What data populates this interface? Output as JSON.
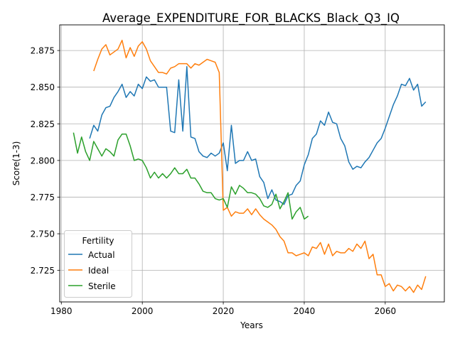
{
  "chart_data": {
    "type": "line",
    "title": "Average_EXPENDITURE_FOR_BLACKS_Black_Q3_IQ",
    "xlabel": "Years",
    "ylabel": "Score(1-3)",
    "xlim": [
      1979.6,
      2074.6
    ],
    "ylim": [
      2.7035,
      2.8925
    ],
    "xticks": [
      1980,
      2000,
      2020,
      2040,
      2060
    ],
    "yticks": [
      2.725,
      2.75,
      2.775,
      2.8,
      2.825,
      2.85,
      2.875
    ],
    "xtick_labels": [
      "1980",
      "2000",
      "2020",
      "2040",
      "2060"
    ],
    "ytick_labels": [
      "2.725",
      "2.750",
      "2.775",
      "2.800",
      "2.825",
      "2.850",
      "2.875"
    ],
    "grid": true,
    "legend": {
      "title": "Fertility",
      "placement": "lower-left"
    },
    "series": [
      {
        "name": "Actual",
        "color": "#1f77b4",
        "x": [
          1987,
          1988,
          1989,
          1990,
          1991,
          1992,
          1993,
          1994,
          1995,
          1996,
          1997,
          1998,
          1999,
          2000,
          2001,
          2002,
          2003,
          2004,
          2005,
          2006,
          2007,
          2008,
          2009,
          2010,
          2011,
          2012,
          2013,
          2014,
          2015,
          2016,
          2017,
          2018,
          2019,
          2020,
          2021,
          2022,
          2023,
          2024,
          2025,
          2026,
          2027,
          2028,
          2029,
          2030,
          2031,
          2032,
          2033,
          2034,
          2035,
          2036,
          2037,
          2038,
          2039,
          2040,
          2041,
          2042,
          2043,
          2044,
          2045,
          2046,
          2047,
          2048,
          2049,
          2050,
          2051,
          2052,
          2053,
          2054,
          2055,
          2056,
          2057,
          2058,
          2059,
          2060,
          2061,
          2062,
          2063,
          2064,
          2065,
          2066,
          2067,
          2068,
          2069,
          2070
        ],
        "values": [
          2.815,
          2.824,
          2.82,
          2.831,
          2.836,
          2.837,
          2.843,
          2.847,
          2.852,
          2.843,
          2.847,
          2.844,
          2.852,
          2.849,
          2.857,
          2.854,
          2.855,
          2.85,
          2.85,
          2.85,
          2.82,
          2.819,
          2.855,
          2.82,
          2.864,
          2.816,
          2.815,
          2.806,
          2.803,
          2.802,
          2.805,
          2.803,
          2.805,
          2.812,
          2.793,
          2.824,
          2.798,
          2.8,
          2.8,
          2.806,
          2.8,
          2.801,
          2.789,
          2.785,
          2.774,
          2.78,
          2.773,
          2.772,
          2.77,
          2.776,
          2.777,
          2.783,
          2.786,
          2.797,
          2.804,
          2.815,
          2.818,
          2.827,
          2.824,
          2.833,
          2.826,
          2.825,
          2.815,
          2.81,
          2.799,
          2.794,
          2.796,
          2.795,
          2.799,
          2.802,
          2.807,
          2.812,
          2.815,
          2.822,
          2.83,
          2.838,
          2.844,
          2.852,
          2.851,
          2.856,
          2.848,
          2.852,
          2.837,
          2.84
        ]
      },
      {
        "name": "Ideal",
        "color": "#ff7f0e",
        "x": [
          1988,
          1989,
          1990,
          1991,
          1992,
          1993,
          1994,
          1995,
          1996,
          1997,
          1998,
          1999,
          2000,
          2001,
          2002,
          2003,
          2004,
          2005,
          2006,
          2007,
          2008,
          2009,
          2010,
          2011,
          2012,
          2013,
          2014,
          2015,
          2016,
          2017,
          2018,
          2019,
          2020,
          2021,
          2022,
          2023,
          2024,
          2025,
          2026,
          2027,
          2028,
          2029,
          2030,
          2031,
          2032,
          2033,
          2034,
          2035,
          2036,
          2037,
          2038,
          2039,
          2040,
          2041,
          2042,
          2043,
          2044,
          2045,
          2046,
          2047,
          2048,
          2049,
          2050,
          2051,
          2052,
          2053,
          2054,
          2055,
          2056,
          2057,
          2058,
          2059,
          2060,
          2061,
          2062,
          2063,
          2064,
          2065,
          2066,
          2067,
          2068,
          2069,
          2070
        ],
        "values": [
          2.861,
          2.869,
          2.876,
          2.879,
          2.872,
          2.874,
          2.876,
          2.882,
          2.87,
          2.877,
          2.871,
          2.878,
          2.881,
          2.876,
          2.868,
          2.864,
          2.86,
          2.86,
          2.859,
          2.863,
          2.864,
          2.866,
          2.866,
          2.866,
          2.863,
          2.866,
          2.865,
          2.867,
          2.869,
          2.868,
          2.867,
          2.86,
          2.766,
          2.768,
          2.762,
          2.765,
          2.764,
          2.764,
          2.767,
          2.763,
          2.767,
          2.763,
          2.76,
          2.758,
          2.756,
          2.753,
          2.748,
          2.745,
          2.737,
          2.737,
          2.735,
          2.736,
          2.737,
          2.735,
          2.741,
          2.74,
          2.744,
          2.736,
          2.743,
          2.735,
          2.738,
          2.737,
          2.737,
          2.74,
          2.738,
          2.743,
          2.74,
          2.745,
          2.733,
          2.736,
          2.722,
          2.722,
          2.714,
          2.716,
          2.711,
          2.715,
          2.714,
          2.711,
          2.714,
          2.71,
          2.715,
          2.712,
          2.721
        ]
      },
      {
        "name": "Sterile",
        "color": "#2ca02c",
        "x": [
          1983,
          1984,
          1985,
          1986,
          1987,
          1988,
          1989,
          1990,
          1991,
          1992,
          1993,
          1994,
          1995,
          1996,
          1997,
          1998,
          1999,
          2000,
          2001,
          2002,
          2003,
          2004,
          2005,
          2006,
          2007,
          2008,
          2009,
          2010,
          2011,
          2012,
          2013,
          2014,
          2015,
          2016,
          2017,
          2018,
          2019,
          2020,
          2021,
          2022,
          2023,
          2024,
          2025,
          2026,
          2027,
          2028,
          2029,
          2030,
          2031,
          2032,
          2033,
          2034,
          2035,
          2036,
          2037,
          2038,
          2039,
          2040,
          2041
        ],
        "values": [
          2.819,
          2.805,
          2.816,
          2.806,
          2.8,
          2.813,
          2.808,
          2.803,
          2.808,
          2.806,
          2.803,
          2.814,
          2.818,
          2.818,
          2.81,
          2.8,
          2.801,
          2.8,
          2.795,
          2.788,
          2.792,
          2.788,
          2.791,
          2.788,
          2.791,
          2.795,
          2.791,
          2.791,
          2.794,
          2.788,
          2.788,
          2.784,
          2.779,
          2.778,
          2.778,
          2.774,
          2.773,
          2.774,
          2.768,
          2.782,
          2.777,
          2.783,
          2.781,
          2.778,
          2.778,
          2.777,
          2.774,
          2.769,
          2.768,
          2.77,
          2.777,
          2.767,
          2.772,
          2.778,
          2.76,
          2.765,
          2.768,
          2.76,
          2.762
        ]
      }
    ]
  }
}
